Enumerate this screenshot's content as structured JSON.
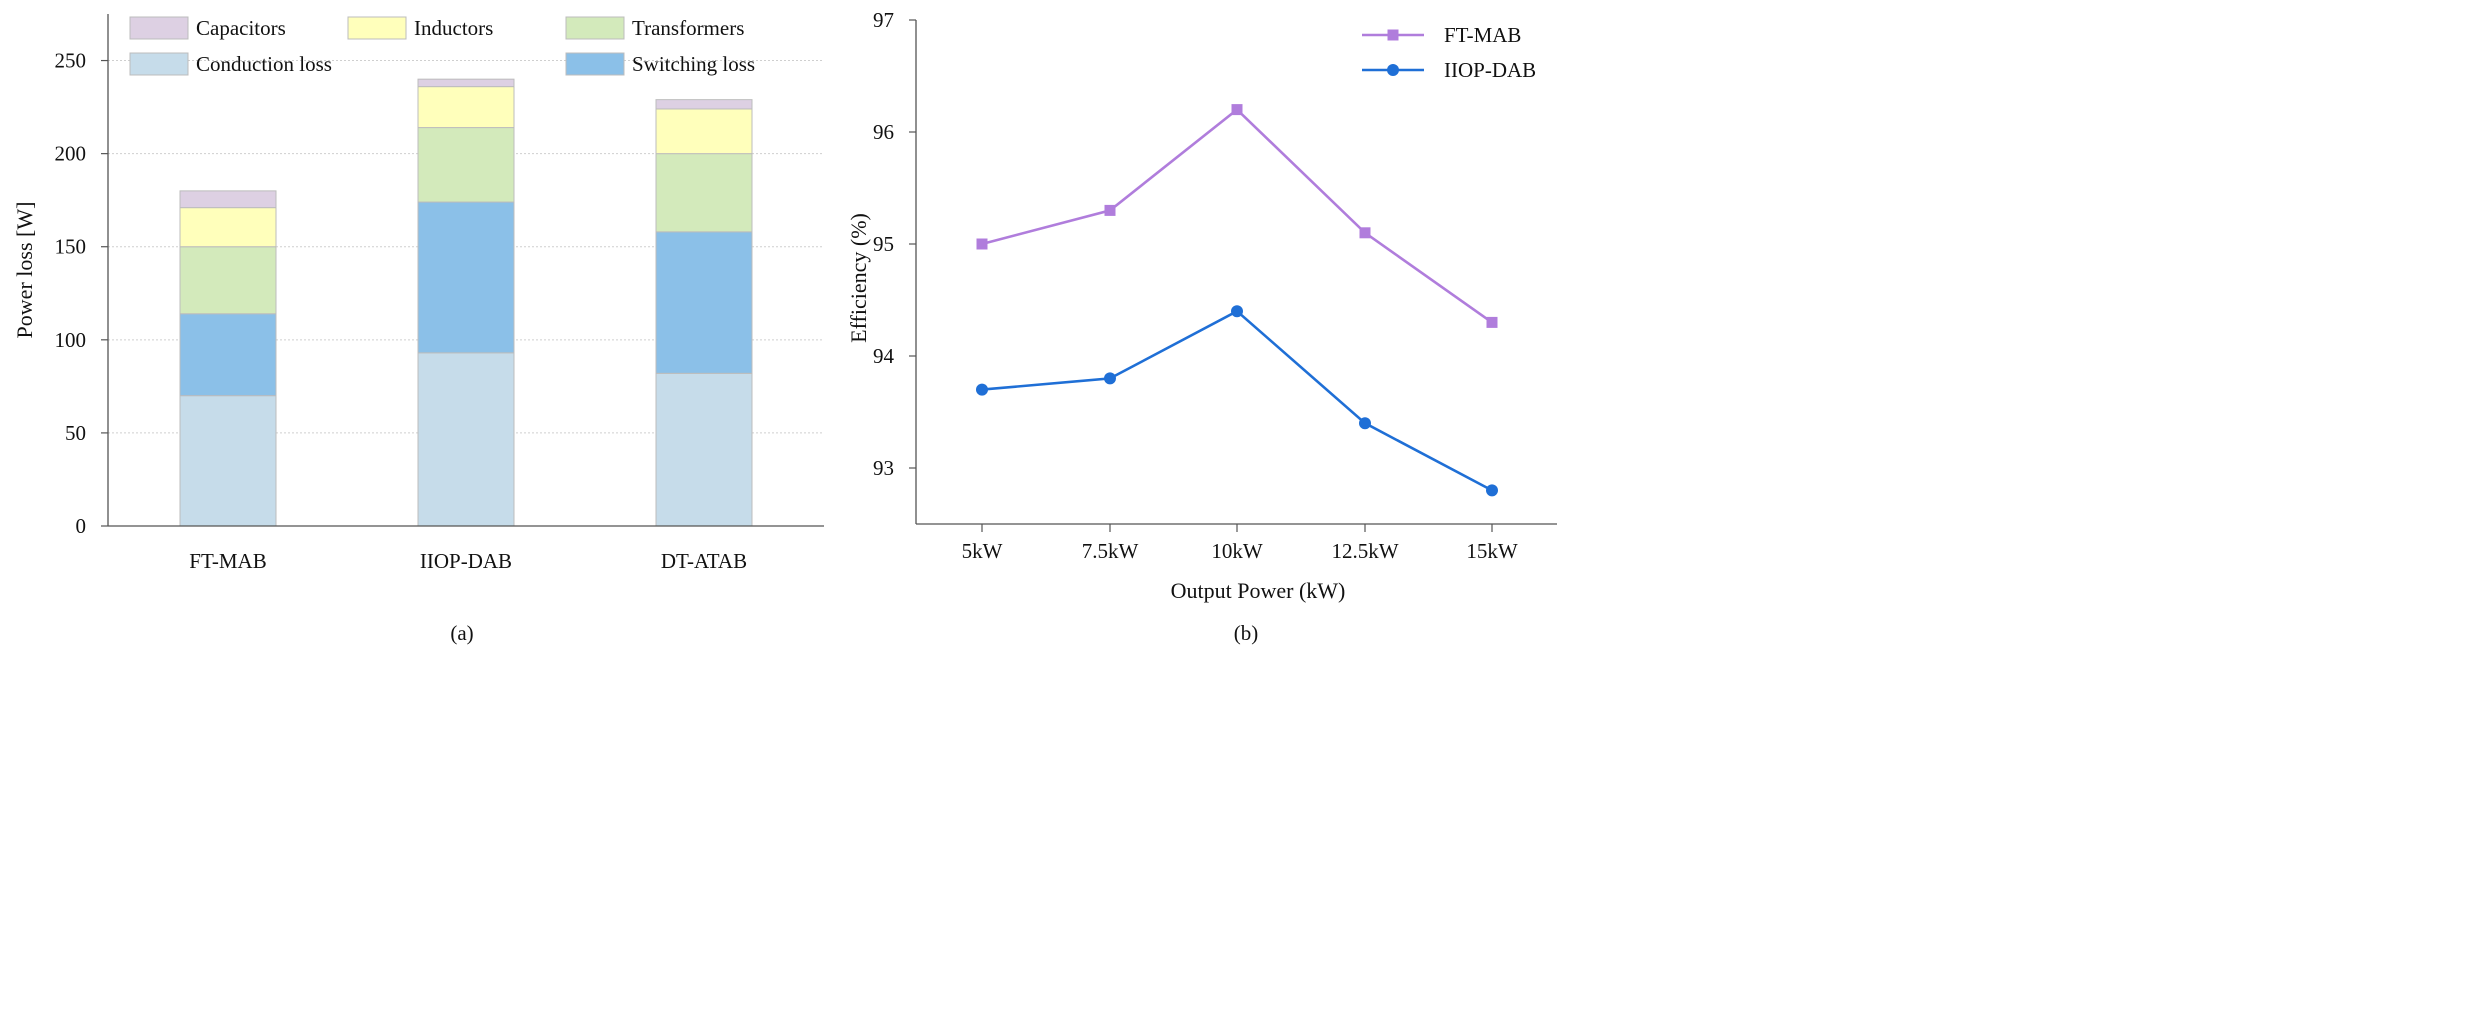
{
  "chart_data": [
    {
      "type": "bar",
      "stacked": true,
      "caption": "(a)",
      "title": "",
      "xlabel": "",
      "ylabel": "Power loss [W]",
      "categories": [
        "FT-MAB",
        "IIOP-DAB",
        "DT-ATAB"
      ],
      "ylim": [
        0,
        275
      ],
      "yticks": [
        0,
        50,
        100,
        150,
        200,
        250
      ],
      "grid": true,
      "legend_position": "top",
      "series": [
        {
          "name": "Conduction loss",
          "color": "#c6dcea",
          "values": [
            70,
            93,
            82
          ]
        },
        {
          "name": "Switching loss",
          "color": "#8bc0e8",
          "values": [
            44,
            81,
            76
          ]
        },
        {
          "name": "Transformers",
          "color": "#d3eabb",
          "values": [
            36,
            40,
            42
          ]
        },
        {
          "name": "Inductors",
          "color": "#ffffbb",
          "values": [
            21,
            22,
            24
          ]
        },
        {
          "name": "Capacitors",
          "color": "#ddd0e3",
          "values": [
            9,
            4,
            5
          ]
        }
      ],
      "legend_order": [
        "Capacitors",
        "Inductors",
        "Transformers",
        "Conduction loss",
        "Switching loss"
      ]
    },
    {
      "type": "line",
      "caption": "(b)",
      "title": "",
      "xlabel": "Output Power (kW)",
      "ylabel": "Efficiency (%)",
      "categories": [
        "5kW",
        "7.5kW",
        "10kW",
        "12.5kW",
        "15kW"
      ],
      "ylim": [
        92.5,
        97
      ],
      "yticks": [
        93,
        94,
        95,
        96,
        97
      ],
      "grid": false,
      "legend_position": "top-right",
      "series": [
        {
          "name": "FT-MAB",
          "color": "#b07ddc",
          "marker": "square",
          "values": [
            95.0,
            95.3,
            96.2,
            95.1,
            94.3
          ]
        },
        {
          "name": "IIOP-DAB",
          "color": "#1f6fd6",
          "marker": "circle",
          "values": [
            93.7,
            93.8,
            94.4,
            93.4,
            92.8
          ]
        }
      ]
    }
  ]
}
